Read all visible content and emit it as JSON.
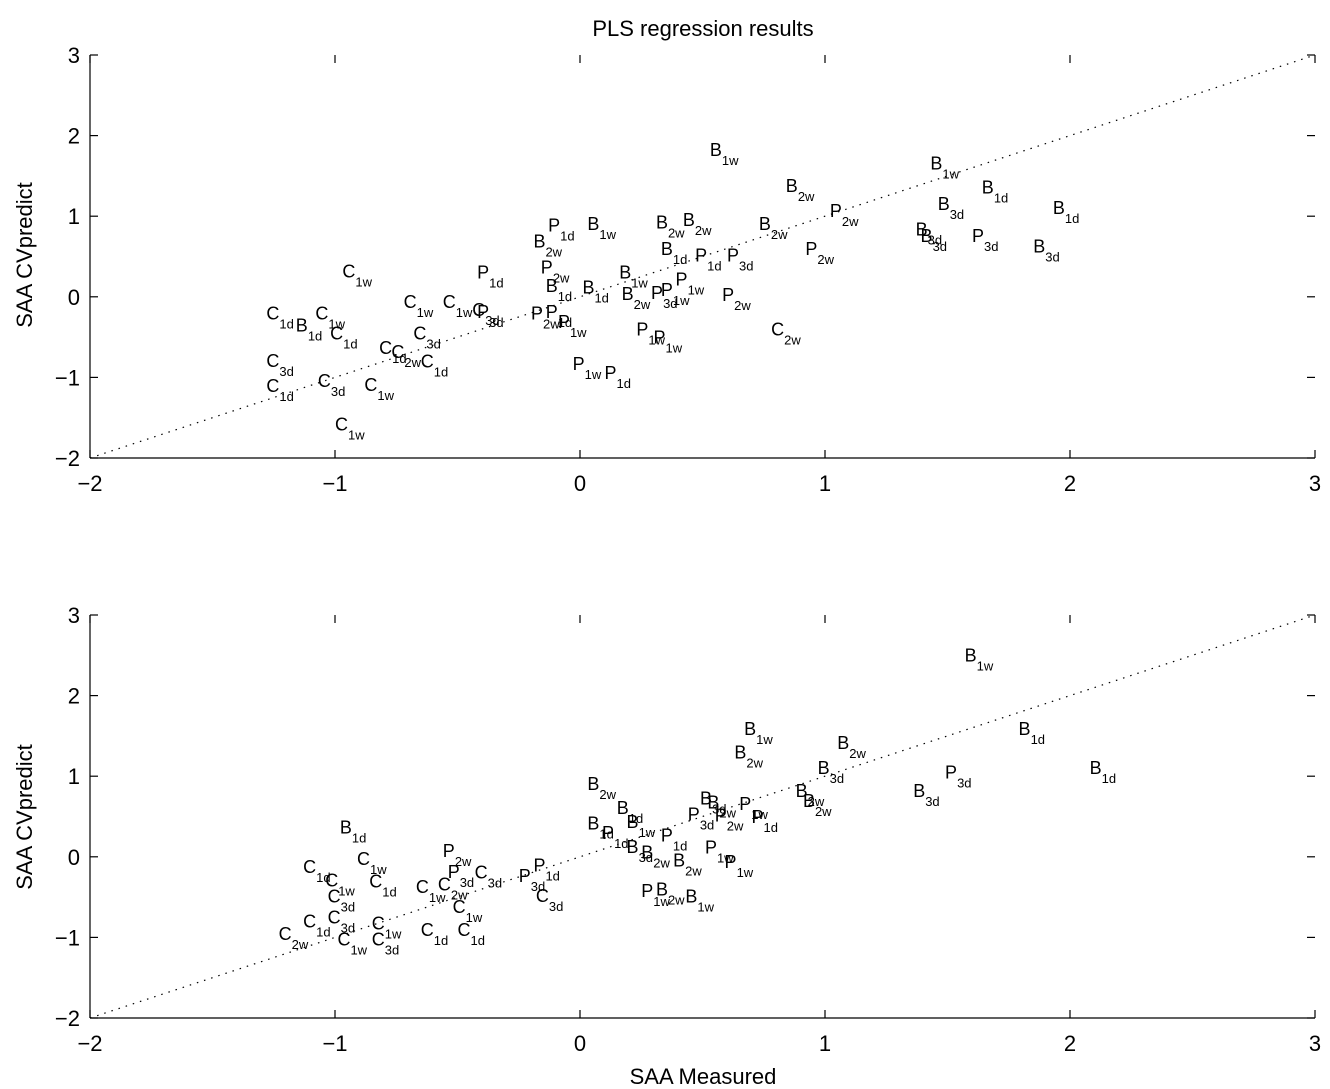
{
  "chart_data": [
    {
      "type": "scatter",
      "title": "PLS regression results",
      "xlabel": "",
      "ylabel": "SAA CVpredict",
      "xlim": [
        -2,
        3
      ],
      "ylim": [
        -2,
        3
      ],
      "xticks": [
        "−2",
        "−1",
        "0",
        "1",
        "2",
        "3"
      ],
      "yticks": [
        "−2",
        "−1",
        "0",
        "1",
        "2",
        "3"
      ],
      "reference_line": "y = x (dotted)",
      "points": [
        {
          "x": 0.53,
          "y": 1.75,
          "letter": "B",
          "sub": "1w"
        },
        {
          "x": 1.43,
          "y": 1.58,
          "letter": "B",
          "sub": "1w"
        },
        {
          "x": 1.64,
          "y": 1.28,
          "letter": "B",
          "sub": "1d"
        },
        {
          "x": 0.84,
          "y": 1.3,
          "letter": "B",
          "sub": "2w"
        },
        {
          "x": 1.46,
          "y": 1.08,
          "letter": "B",
          "sub": "3d"
        },
        {
          "x": 1.02,
          "y": 0.99,
          "letter": "P",
          "sub": "2w"
        },
        {
          "x": 1.93,
          "y": 1.03,
          "letter": "B",
          "sub": "1d"
        },
        {
          "x": -0.13,
          "y": 0.81,
          "letter": "P",
          "sub": "1d"
        },
        {
          "x": 0.03,
          "y": 0.83,
          "letter": "B",
          "sub": "1w"
        },
        {
          "x": 0.31,
          "y": 0.85,
          "letter": "B",
          "sub": "2w"
        },
        {
          "x": 0.42,
          "y": 0.88,
          "letter": "B",
          "sub": "2w"
        },
        {
          "x": 0.73,
          "y": 0.83,
          "letter": "B",
          "sub": "2w"
        },
        {
          "x": 1.37,
          "y": 0.76,
          "letter": "B",
          "sub": "3d"
        },
        {
          "x": 1.39,
          "y": 0.68,
          "letter": "B",
          "sub": "3d"
        },
        {
          "x": 1.6,
          "y": 0.68,
          "letter": "P",
          "sub": "3d"
        },
        {
          "x": 1.85,
          "y": 0.55,
          "letter": "B",
          "sub": "3d"
        },
        {
          "x": -0.19,
          "y": 0.61,
          "letter": "B",
          "sub": "2w"
        },
        {
          "x": 0.33,
          "y": 0.52,
          "letter": "B",
          "sub": "1d"
        },
        {
          "x": 0.47,
          "y": 0.44,
          "letter": "P",
          "sub": "1d"
        },
        {
          "x": 0.6,
          "y": 0.44,
          "letter": "P",
          "sub": "3d"
        },
        {
          "x": 0.92,
          "y": 0.52,
          "letter": "P",
          "sub": "2w"
        },
        {
          "x": -0.16,
          "y": 0.29,
          "letter": "P",
          "sub": "2w"
        },
        {
          "x": -0.42,
          "y": 0.23,
          "letter": "P",
          "sub": "1d"
        },
        {
          "x": -0.97,
          "y": 0.24,
          "letter": "C",
          "sub": "1w"
        },
        {
          "x": 0.16,
          "y": 0.23,
          "letter": "B",
          "sub": "1w"
        },
        {
          "x": 0.39,
          "y": 0.14,
          "letter": "P",
          "sub": "1w"
        },
        {
          "x": -0.14,
          "y": 0.06,
          "letter": "B",
          "sub": "1d"
        },
        {
          "x": 0.01,
          "y": 0.04,
          "letter": "B",
          "sub": "1d"
        },
        {
          "x": 0.17,
          "y": -0.04,
          "letter": "B",
          "sub": "2w"
        },
        {
          "x": 0.29,
          "y": -0.03,
          "letter": "P",
          "sub": "3d"
        },
        {
          "x": 0.58,
          "y": -0.05,
          "letter": "P",
          "sub": "2w"
        },
        {
          "x": 0.33,
          "y": 0.01,
          "letter": "P",
          "sub": "1w"
        },
        {
          "x": -0.72,
          "y": -0.14,
          "letter": "C",
          "sub": "1w"
        },
        {
          "x": -0.56,
          "y": -0.14,
          "letter": "C",
          "sub": "1w"
        },
        {
          "x": -0.44,
          "y": -0.24,
          "letter": "C",
          "sub": "3d"
        },
        {
          "x": -0.42,
          "y": -0.26,
          "letter": "P",
          "sub": "3d"
        },
        {
          "x": -0.2,
          "y": -0.28,
          "letter": "P",
          "sub": "2w"
        },
        {
          "x": -0.14,
          "y": -0.26,
          "letter": "P",
          "sub": "1d"
        },
        {
          "x": -0.09,
          "y": -0.39,
          "letter": "P",
          "sub": "1w"
        },
        {
          "x": -1.28,
          "y": -0.28,
          "letter": "C",
          "sub": "1d"
        },
        {
          "x": -1.08,
          "y": -0.28,
          "letter": "C",
          "sub": "1w"
        },
        {
          "x": -1.16,
          "y": -0.43,
          "letter": "B",
          "sub": "1d"
        },
        {
          "x": -1.02,
          "y": -0.53,
          "letter": "C",
          "sub": "1d"
        },
        {
          "x": -0.68,
          "y": -0.53,
          "letter": "C",
          "sub": "3d"
        },
        {
          "x": 0.23,
          "y": -0.48,
          "letter": "P",
          "sub": "1w"
        },
        {
          "x": 0.3,
          "y": -0.58,
          "letter": "P",
          "sub": "1w"
        },
        {
          "x": 0.78,
          "y": -0.48,
          "letter": "C",
          "sub": "2w"
        },
        {
          "x": -0.82,
          "y": -0.71,
          "letter": "C",
          "sub": "1d"
        },
        {
          "x": -0.77,
          "y": -0.76,
          "letter": "C",
          "sub": "2w"
        },
        {
          "x": -0.65,
          "y": -0.88,
          "letter": "C",
          "sub": "1d"
        },
        {
          "x": -1.28,
          "y": -0.87,
          "letter": "C",
          "sub": "3d"
        },
        {
          "x": -0.03,
          "y": -0.91,
          "letter": "P",
          "sub": "1w"
        },
        {
          "x": 0.1,
          "y": -1.02,
          "letter": "P",
          "sub": "1d"
        },
        {
          "x": -1.28,
          "y": -1.18,
          "letter": "C",
          "sub": "1d"
        },
        {
          "x": -1.07,
          "y": -1.12,
          "letter": "C",
          "sub": "3d"
        },
        {
          "x": -0.88,
          "y": -1.17,
          "letter": "C",
          "sub": "1w"
        },
        {
          "x": -1.0,
          "y": -1.66,
          "letter": "C",
          "sub": "1w"
        }
      ]
    },
    {
      "type": "scatter",
      "title": "",
      "xlabel": "SAA Measured",
      "ylabel": "SAA CVpredict",
      "xlim": [
        -2,
        3
      ],
      "ylim": [
        -2,
        3
      ],
      "xticks": [
        "−2",
        "−1",
        "0",
        "1",
        "2",
        "3"
      ],
      "yticks": [
        "−2",
        "−1",
        "0",
        "1",
        "2",
        "3"
      ],
      "reference_line": "y = x (dotted)",
      "points": [
        {
          "x": 1.57,
          "y": 2.42,
          "letter": "B",
          "sub": "1w"
        },
        {
          "x": 1.79,
          "y": 1.51,
          "letter": "B",
          "sub": "1d"
        },
        {
          "x": 2.08,
          "y": 1.03,
          "letter": "B",
          "sub": "1d"
        },
        {
          "x": 1.05,
          "y": 1.34,
          "letter": "B",
          "sub": "2w"
        },
        {
          "x": 0.67,
          "y": 1.51,
          "letter": "B",
          "sub": "1w"
        },
        {
          "x": 0.63,
          "y": 1.22,
          "letter": "B",
          "sub": "2w"
        },
        {
          "x": 0.97,
          "y": 1.03,
          "letter": "B",
          "sub": "3d"
        },
        {
          "x": 1.49,
          "y": 0.97,
          "letter": "P",
          "sub": "3d"
        },
        {
          "x": 1.36,
          "y": 0.74,
          "letter": "B",
          "sub": "3d"
        },
        {
          "x": 0.03,
          "y": 0.83,
          "letter": "B",
          "sub": "2w"
        },
        {
          "x": -0.98,
          "y": 0.29,
          "letter": "B",
          "sub": "1d"
        },
        {
          "x": 0.49,
          "y": 0.65,
          "letter": "B",
          "sub": "3d"
        },
        {
          "x": 0.52,
          "y": 0.6,
          "letter": "B",
          "sub": "2w"
        },
        {
          "x": 0.65,
          "y": 0.58,
          "letter": "P",
          "sub": "1w"
        },
        {
          "x": 0.88,
          "y": 0.74,
          "letter": "B",
          "sub": "2w"
        },
        {
          "x": 0.91,
          "y": 0.62,
          "letter": "B",
          "sub": "2w"
        },
        {
          "x": 0.15,
          "y": 0.53,
          "letter": "B",
          "sub": "1d"
        },
        {
          "x": 0.44,
          "y": 0.45,
          "letter": "P",
          "sub": "3d"
        },
        {
          "x": 0.55,
          "y": 0.44,
          "letter": "P",
          "sub": "2w"
        },
        {
          "x": 0.7,
          "y": 0.42,
          "letter": "P",
          "sub": "1d"
        },
        {
          "x": 0.03,
          "y": 0.34,
          "letter": "B",
          "sub": "1d"
        },
        {
          "x": 0.09,
          "y": 0.22,
          "letter": "P",
          "sub": "1d"
        },
        {
          "x": 0.19,
          "y": 0.36,
          "letter": "B",
          "sub": "1w"
        },
        {
          "x": 0.33,
          "y": 0.19,
          "letter": "P",
          "sub": "1d"
        },
        {
          "x": 0.51,
          "y": 0.04,
          "letter": "P",
          "sub": "1w"
        },
        {
          "x": 0.59,
          "y": -0.14,
          "letter": "P",
          "sub": "1w"
        },
        {
          "x": 0.19,
          "y": 0.05,
          "letter": "B",
          "sub": "3d"
        },
        {
          "x": 0.25,
          "y": -0.02,
          "letter": "B",
          "sub": "2w"
        },
        {
          "x": 0.38,
          "y": -0.12,
          "letter": "B",
          "sub": "2w"
        },
        {
          "x": -1.13,
          "y": -0.2,
          "letter": "C",
          "sub": "1d"
        },
        {
          "x": -0.91,
          "y": -0.1,
          "letter": "C",
          "sub": "1w"
        },
        {
          "x": -0.86,
          "y": -0.38,
          "letter": "C",
          "sub": "1d"
        },
        {
          "x": -0.56,
          "y": 0.0,
          "letter": "P",
          "sub": "2w"
        },
        {
          "x": -0.54,
          "y": -0.26,
          "letter": "P",
          "sub": "3d"
        },
        {
          "x": -0.43,
          "y": -0.27,
          "letter": "C",
          "sub": "3d"
        },
        {
          "x": -0.25,
          "y": -0.31,
          "letter": "P",
          "sub": "3d"
        },
        {
          "x": -0.19,
          "y": -0.18,
          "letter": "P",
          "sub": "1d"
        },
        {
          "x": -0.18,
          "y": -0.56,
          "letter": "C",
          "sub": "3d"
        },
        {
          "x": -1.04,
          "y": -0.37,
          "letter": "C",
          "sub": "1w"
        },
        {
          "x": -1.03,
          "y": -0.57,
          "letter": "C",
          "sub": "3d"
        },
        {
          "x": -0.67,
          "y": -0.45,
          "letter": "C",
          "sub": "1w"
        },
        {
          "x": -0.58,
          "y": -0.42,
          "letter": "C",
          "sub": "2w"
        },
        {
          "x": -0.52,
          "y": -0.7,
          "letter": "C",
          "sub": "1w"
        },
        {
          "x": 0.25,
          "y": -0.5,
          "letter": "P",
          "sub": "1w"
        },
        {
          "x": 0.31,
          "y": -0.48,
          "letter": "B",
          "sub": "2w"
        },
        {
          "x": 0.43,
          "y": -0.57,
          "letter": "B",
          "sub": "1w"
        },
        {
          "x": -1.13,
          "y": -0.88,
          "letter": "C",
          "sub": "1d"
        },
        {
          "x": -1.03,
          "y": -0.83,
          "letter": "C",
          "sub": "3d"
        },
        {
          "x": -0.85,
          "y": -0.9,
          "letter": "C",
          "sub": "1w"
        },
        {
          "x": -0.65,
          "y": -0.98,
          "letter": "C",
          "sub": "1d"
        },
        {
          "x": -0.5,
          "y": -0.98,
          "letter": "C",
          "sub": "1d"
        },
        {
          "x": -1.23,
          "y": -1.03,
          "letter": "C",
          "sub": "2w"
        },
        {
          "x": -0.99,
          "y": -1.1,
          "letter": "C",
          "sub": "1w"
        },
        {
          "x": -0.85,
          "y": -1.1,
          "letter": "C",
          "sub": "3d"
        }
      ]
    }
  ]
}
